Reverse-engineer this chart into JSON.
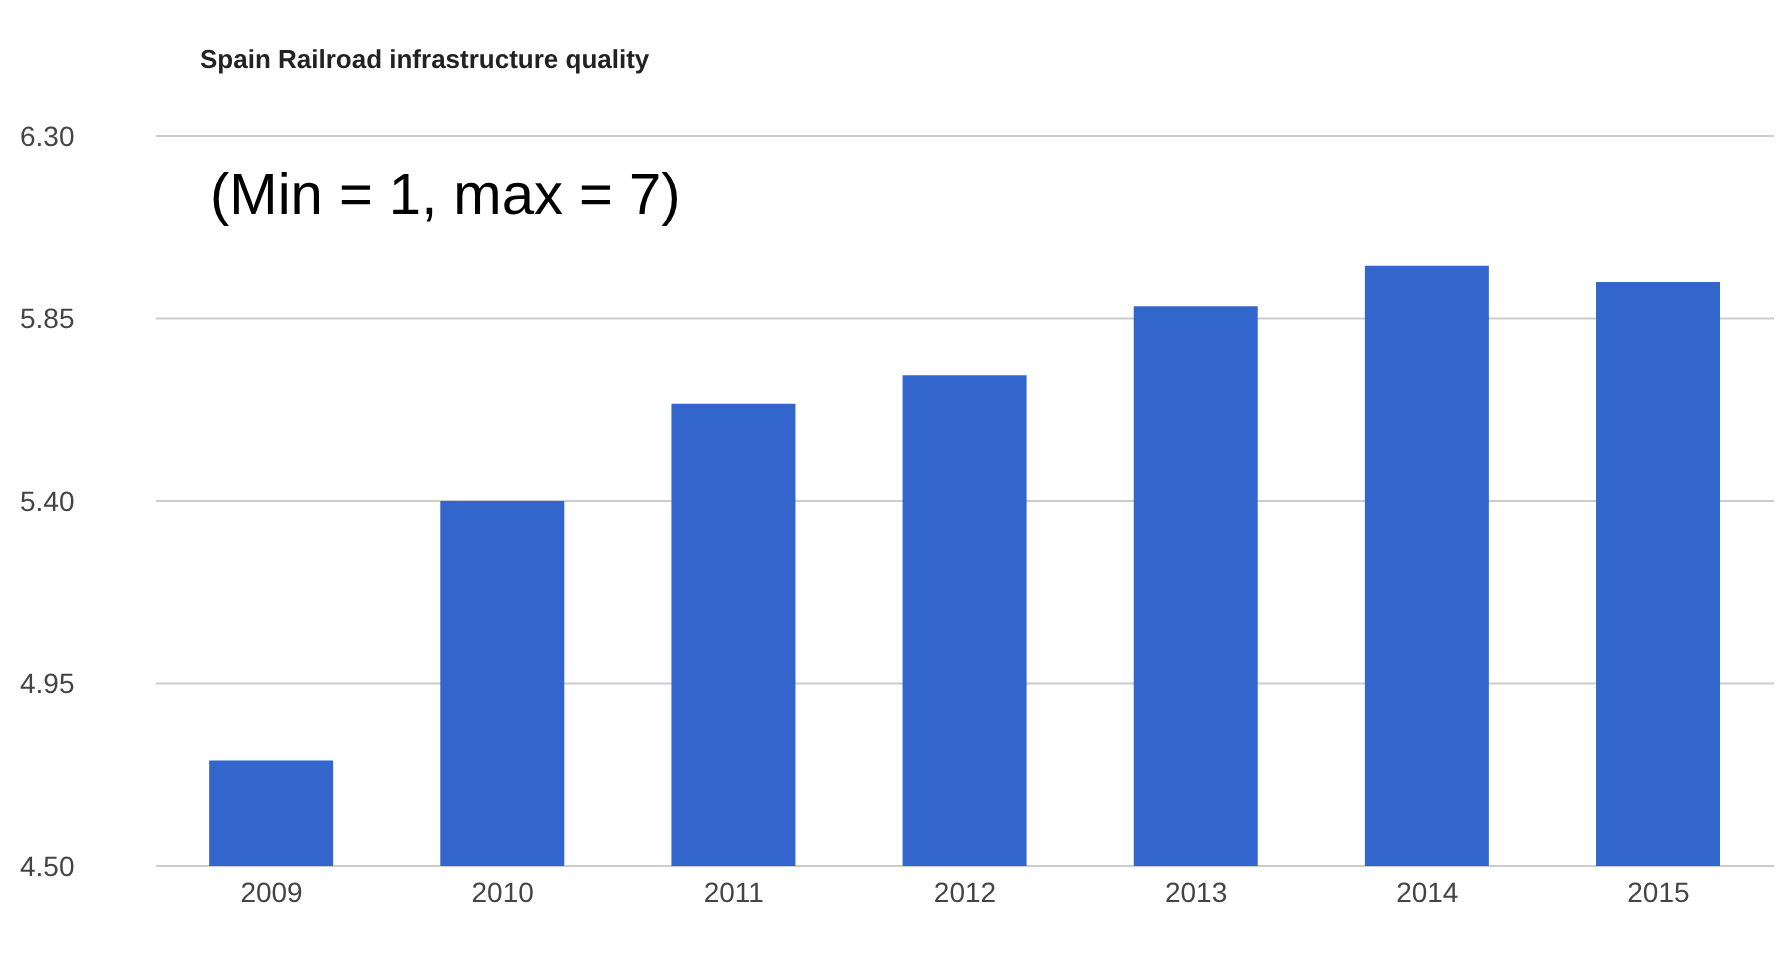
{
  "chart_data": {
    "type": "bar",
    "title": "Spain Railroad infrastructure quality",
    "annotations": [
      "(Min = 1, max = 7)"
    ],
    "categories": [
      "2009",
      "2010",
      "2011",
      "2012",
      "2013",
      "2014",
      "2015"
    ],
    "values": [
      4.76,
      5.4,
      5.64,
      5.71,
      5.88,
      5.98,
      5.94
    ],
    "color": "#3366cc",
    "ylim": [
      4.5,
      6.3
    ],
    "yticks": [
      {
        "value": 4.5,
        "label": "4.50"
      },
      {
        "value": 4.95,
        "label": "4.95"
      },
      {
        "value": 5.4,
        "label": "5.40"
      },
      {
        "value": 5.85,
        "label": "5.85"
      },
      {
        "value": 6.3,
        "label": "6.30"
      }
    ],
    "grid": "y",
    "legend": false
  }
}
